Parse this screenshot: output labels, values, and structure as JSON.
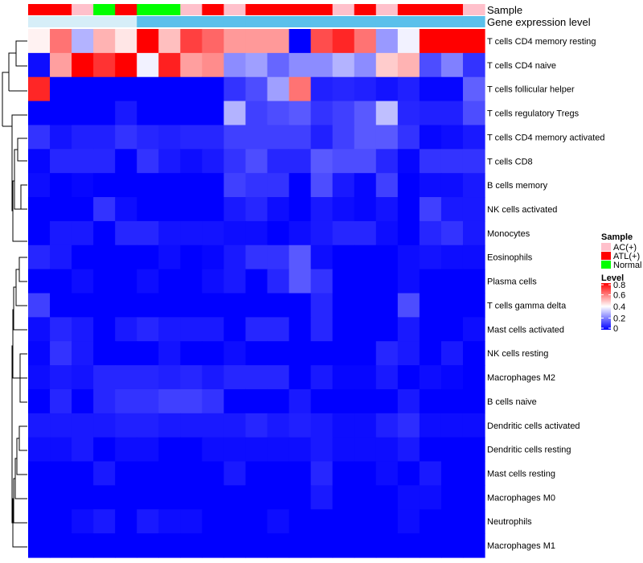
{
  "chart_data": {
    "type": "heatmap",
    "annotation": {
      "sample_title": "Sample",
      "gene_title": "Gene expression level",
      "samples": [
        "ATL(+)",
        "ATL(+)",
        "AC(+)",
        "Normal",
        "ATL(+)",
        "Normal",
        "Normal",
        "AC(+)",
        "ATL(+)",
        "AC(+)",
        "ATL(+)",
        "ATL(+)",
        "ATL(+)",
        "ATL(+)",
        "AC(+)",
        "ATL(+)",
        "AC(+)",
        "ATL(+)",
        "ATL(+)",
        "ATL(+)",
        "AC(+)"
      ],
      "gene_level": [
        "low",
        "low",
        "low",
        "low",
        "low",
        "high",
        "high",
        "high",
        "high",
        "high",
        "high",
        "high",
        "high",
        "high",
        "high",
        "high",
        "high",
        "high",
        "high",
        "high",
        "high"
      ]
    },
    "rows": [
      "T cells CD4 memory resting",
      "T cells CD4 naive",
      "T cells follicular helper",
      "T cells regulatory  Tregs",
      "T cells CD4 memory activated",
      "T cells CD8",
      "B cells memory",
      "NK cells activated",
      "Monocytes",
      "Eosinophils",
      "Plasma cells",
      "T cells gamma delta",
      "Mast cells activated",
      "NK cells resting",
      "Macrophages M2",
      "B cells naive",
      "Dendritic cells activated",
      "Dendritic cells resting",
      "Mast cells resting",
      "Macrophages M0",
      "Neutrophils",
      "Macrophages M1"
    ],
    "values": [
      [
        0.42,
        0.62,
        0.28,
        0.52,
        0.44,
        0.8,
        0.5,
        0.7,
        0.64,
        0.56,
        0.56,
        0.56,
        0.0,
        0.68,
        0.74,
        0.62,
        0.24,
        0.38,
        0.8,
        0.8,
        0.8
      ],
      [
        0.02,
        0.55,
        0.8,
        0.72,
        0.8,
        0.38,
        0.75,
        0.55,
        0.58,
        0.22,
        0.25,
        0.16,
        0.22,
        0.22,
        0.28,
        0.22,
        0.48,
        0.52,
        0.12,
        0.2,
        0.08
      ],
      [
        0.74,
        0.0,
        0.0,
        0.0,
        0.0,
        0.0,
        0.0,
        0.0,
        0.0,
        0.08,
        0.12,
        0.25,
        0.62,
        0.05,
        0.06,
        0.05,
        0.03,
        0.05,
        0.01,
        0.01,
        0.15
      ],
      [
        0.0,
        0.0,
        0.0,
        0.0,
        0.04,
        0.0,
        0.0,
        0.0,
        0.0,
        0.28,
        0.1,
        0.12,
        0.14,
        0.08,
        0.1,
        0.14,
        0.3,
        0.06,
        0.05,
        0.05,
        0.12
      ],
      [
        0.08,
        0.03,
        0.05,
        0.05,
        0.08,
        0.06,
        0.05,
        0.06,
        0.06,
        0.1,
        0.1,
        0.1,
        0.1,
        0.05,
        0.1,
        0.14,
        0.14,
        0.08,
        0.01,
        0.02,
        0.04
      ],
      [
        0.01,
        0.06,
        0.06,
        0.06,
        0.0,
        0.08,
        0.04,
        0.02,
        0.04,
        0.08,
        0.12,
        0.06,
        0.06,
        0.14,
        0.12,
        0.12,
        0.06,
        0.01,
        0.08,
        0.08,
        0.08
      ],
      [
        0.02,
        0.0,
        0.01,
        0.0,
        0.0,
        0.0,
        0.0,
        0.0,
        0.0,
        0.1,
        0.08,
        0.08,
        0.0,
        0.12,
        0.04,
        0.01,
        0.1,
        0.0,
        0.02,
        0.02,
        0.04
      ],
      [
        0.0,
        0.0,
        0.0,
        0.08,
        0.02,
        0.0,
        0.0,
        0.0,
        0.0,
        0.04,
        0.06,
        0.02,
        0.0,
        0.04,
        0.02,
        0.01,
        0.03,
        0.0,
        0.1,
        0.04,
        0.04
      ],
      [
        0.0,
        0.04,
        0.04,
        0.0,
        0.06,
        0.06,
        0.03,
        0.03,
        0.03,
        0.02,
        0.02,
        0.0,
        0.02,
        0.04,
        0.06,
        0.06,
        0.02,
        0.0,
        0.06,
        0.08,
        0.04
      ],
      [
        0.06,
        0.04,
        0.0,
        0.0,
        0.0,
        0.0,
        0.02,
        0.0,
        0.01,
        0.04,
        0.08,
        0.08,
        0.14,
        0.02,
        0.0,
        0.0,
        0.0,
        0.02,
        0.03,
        0.02,
        0.02
      ],
      [
        0.0,
        0.0,
        0.02,
        0.0,
        0.0,
        0.02,
        0.0,
        0.0,
        0.02,
        0.04,
        0.0,
        0.06,
        0.14,
        0.08,
        0.0,
        0.0,
        0.0,
        0.02,
        0.0,
        0.0,
        0.0
      ],
      [
        0.1,
        0.0,
        0.0,
        0.0,
        0.0,
        0.0,
        0.0,
        0.0,
        0.0,
        0.0,
        0.0,
        0.0,
        0.0,
        0.06,
        0.0,
        0.0,
        0.0,
        0.12,
        0.0,
        0.0,
        0.0
      ],
      [
        0.02,
        0.06,
        0.04,
        0.0,
        0.04,
        0.06,
        0.04,
        0.04,
        0.04,
        0.0,
        0.06,
        0.06,
        0.0,
        0.06,
        0.0,
        0.0,
        0.0,
        0.04,
        0.0,
        0.0,
        0.02
      ],
      [
        0.01,
        0.08,
        0.04,
        0.0,
        0.0,
        0.0,
        0.03,
        0.0,
        0.0,
        0.02,
        0.0,
        0.0,
        0.0,
        0.0,
        0.0,
        0.0,
        0.06,
        0.04,
        0.0,
        0.04,
        0.0
      ],
      [
        0.02,
        0.04,
        0.03,
        0.06,
        0.06,
        0.06,
        0.05,
        0.06,
        0.04,
        0.06,
        0.06,
        0.06,
        0.0,
        0.04,
        0.01,
        0.01,
        0.04,
        0.0,
        0.02,
        0.01,
        0.0
      ],
      [
        0.0,
        0.06,
        0.0,
        0.06,
        0.08,
        0.08,
        0.1,
        0.1,
        0.08,
        0.0,
        0.0,
        0.0,
        0.04,
        0.0,
        0.0,
        0.0,
        0.0,
        0.04,
        0.0,
        0.0,
        0.0
      ],
      [
        0.04,
        0.04,
        0.04,
        0.04,
        0.05,
        0.05,
        0.04,
        0.04,
        0.04,
        0.04,
        0.06,
        0.04,
        0.05,
        0.04,
        0.02,
        0.02,
        0.05,
        0.07,
        0.02,
        0.02,
        0.02
      ],
      [
        0.02,
        0.02,
        0.04,
        0.0,
        0.02,
        0.02,
        0.0,
        0.0,
        0.02,
        0.02,
        0.02,
        0.02,
        0.02,
        0.04,
        0.02,
        0.02,
        0.02,
        0.04,
        0.0,
        0.0,
        0.0
      ],
      [
        0.0,
        0.0,
        0.0,
        0.04,
        0.0,
        0.0,
        0.0,
        0.0,
        0.0,
        0.04,
        0.0,
        0.0,
        0.0,
        0.06,
        0.0,
        0.0,
        0.02,
        0.0,
        0.04,
        0.0,
        0.0
      ],
      [
        0.0,
        0.0,
        0.0,
        0.0,
        0.0,
        0.0,
        0.0,
        0.0,
        0.0,
        0.0,
        0.0,
        0.0,
        0.0,
        0.04,
        0.0,
        0.0,
        0.0,
        0.02,
        0.02,
        0.0,
        0.0
      ],
      [
        0.0,
        0.0,
        0.02,
        0.04,
        0.0,
        0.04,
        0.02,
        0.02,
        0.0,
        0.0,
        0.0,
        0.02,
        0.0,
        0.0,
        0.0,
        0.0,
        0.0,
        0.02,
        0.0,
        0.0,
        0.0
      ],
      [
        0.0,
        0.0,
        0.0,
        0.0,
        0.0,
        0.0,
        0.0,
        0.0,
        0.0,
        0.0,
        0.0,
        0.0,
        0.0,
        0.0,
        0.0,
        0.0,
        0.0,
        0.0,
        0.0,
        0.0,
        0.0
      ]
    ],
    "legend_sample": {
      "title": "Sample",
      "items": [
        {
          "label": "AC(+)",
          "color": "#FFC0CB"
        },
        {
          "label": "ATL(+)",
          "color": "#FF0000"
        },
        {
          "label": "Normal",
          "color": "#00FF00"
        }
      ]
    },
    "legend_level": {
      "title": "Level",
      "ticks": [
        "0.8",
        "0.6",
        "0.4",
        "0.2",
        "0"
      ],
      "tick_values": [
        0.8,
        0.6,
        0.4,
        0.2,
        0
      ],
      "range": [
        0,
        0.8
      ],
      "colors": {
        "low": "#0000FF",
        "mid": "#FFFFFF",
        "high": "#FF0000"
      }
    },
    "gene_level_colors": {
      "low": "#D6EEF8",
      "high": "#5BC0EB"
    }
  }
}
